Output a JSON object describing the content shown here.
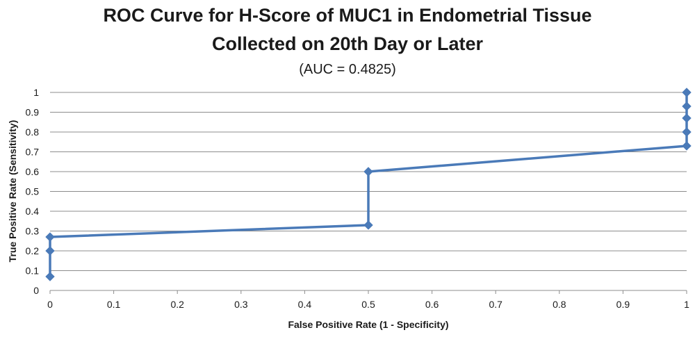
{
  "chart_data": {
    "type": "line",
    "title_line1": "ROC Curve for H-Score of MUC1 in Endometrial Tissue",
    "title_line2": "Collected on 20th Day or Later",
    "subtitle": "(AUC = 0.4825)",
    "xlabel": "False Positive Rate (1 - Specificity)",
    "ylabel": "True Positive Rate (Sensitivity)",
    "xlim": [
      0,
      1
    ],
    "ylim": [
      0,
      1
    ],
    "x_ticks": [
      "0",
      "0.1",
      "0.2",
      "0.3",
      "0.4",
      "0.5",
      "0.6",
      "0.7",
      "0.8",
      "0.9",
      "1"
    ],
    "y_ticks": [
      "0",
      "0.1",
      "0.2",
      "0.3",
      "0.4",
      "0.5",
      "0.6",
      "0.7",
      "0.8",
      "0.9",
      "1"
    ],
    "grid": "horizontal",
    "legend": "none",
    "series": [
      {
        "color": "#4a7ab8",
        "marker": "diamond",
        "points": [
          {
            "x": 0,
            "y": 0.07
          },
          {
            "x": 0,
            "y": 0.2
          },
          {
            "x": 0,
            "y": 0.27
          },
          {
            "x": 0.5,
            "y": 0.33
          },
          {
            "x": 0.5,
            "y": 0.6
          },
          {
            "x": 1,
            "y": 0.73
          },
          {
            "x": 1,
            "y": 0.8
          },
          {
            "x": 1,
            "y": 0.87
          },
          {
            "x": 1,
            "y": 0.93
          },
          {
            "x": 1,
            "y": 1
          }
        ]
      }
    ]
  }
}
